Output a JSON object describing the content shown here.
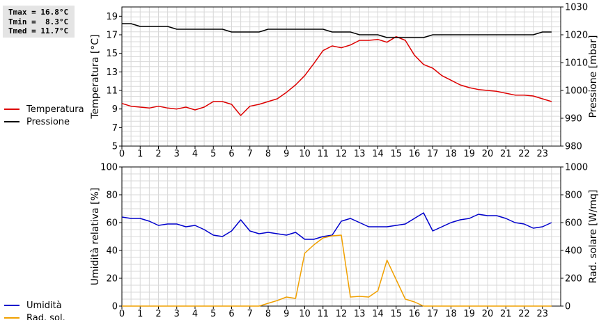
{
  "stats": {
    "tmax": "Tmax = 16.8°C",
    "tmin": "Tmin =  8.3°C",
    "tmed": "Tmed = 11.7°C"
  },
  "chart_data": [
    {
      "type": "line",
      "title": "",
      "xlabel": "",
      "ylabel": "Temperatura [°C]",
      "ylabel_right": "Pressione [mbar]",
      "xlim": [
        0,
        24
      ],
      "ylim": [
        5,
        20
      ],
      "ylim_right": [
        980,
        1030
      ],
      "xticks": [
        0,
        1,
        2,
        3,
        4,
        5,
        6,
        7,
        8,
        9,
        10,
        11,
        12,
        13,
        14,
        15,
        16,
        17,
        18,
        19,
        20,
        21,
        22,
        23
      ],
      "yticks": [
        5,
        7,
        9,
        11,
        13,
        15,
        17,
        19
      ],
      "yticks_right": [
        980,
        990,
        1000,
        1010,
        1020,
        1030
      ],
      "grid": true,
      "legend_position": "left",
      "series": [
        {
          "name": "Temperatura",
          "color": "#dd0000",
          "axis": "left",
          "x": [
            0,
            0.5,
            1,
            1.5,
            2,
            2.5,
            3,
            3.5,
            4,
            4.5,
            5,
            5.5,
            6,
            6.5,
            7,
            7.5,
            8,
            8.5,
            9,
            9.5,
            10,
            10.5,
            11,
            11.5,
            12,
            12.5,
            13,
            13.5,
            14,
            14.5,
            15,
            15.5,
            16,
            16.5,
            17,
            17.5,
            18,
            18.5,
            19,
            19.5,
            20,
            20.5,
            21,
            21.5,
            22,
            22.5,
            23,
            23.5
          ],
          "values": [
            9.6,
            9.3,
            9.2,
            9.1,
            9.3,
            9.1,
            9.0,
            9.2,
            8.9,
            9.2,
            9.8,
            9.8,
            9.5,
            8.3,
            9.3,
            9.5,
            9.8,
            10.1,
            10.8,
            11.6,
            12.6,
            13.9,
            15.3,
            15.8,
            15.6,
            15.9,
            16.4,
            16.4,
            16.5,
            16.2,
            16.8,
            16.4,
            14.8,
            13.8,
            13.4,
            12.6,
            12.1,
            11.6,
            11.3,
            11.1,
            11.0,
            10.9,
            10.7,
            10.5,
            10.5,
            10.4,
            10.1,
            9.8
          ]
        },
        {
          "name": "Pressione",
          "color": "#000000",
          "axis": "right",
          "x": [
            0,
            0.5,
            1,
            1.5,
            2,
            2.5,
            3,
            3.5,
            4,
            4.5,
            5,
            5.5,
            6,
            6.5,
            7,
            7.5,
            8,
            8.5,
            9,
            9.5,
            10,
            10.5,
            11,
            11.5,
            12,
            12.5,
            13,
            13.5,
            14,
            14.5,
            15,
            15.5,
            16,
            16.5,
            17,
            17.5,
            18,
            18.5,
            19,
            19.5,
            20,
            20.5,
            21,
            21.5,
            22,
            22.5,
            23,
            23.5
          ],
          "values": [
            1024,
            1024,
            1023,
            1023,
            1023,
            1023,
            1022,
            1022,
            1022,
            1022,
            1022,
            1022,
            1021,
            1021,
            1021,
            1021,
            1022,
            1022,
            1022,
            1022,
            1022,
            1022,
            1022,
            1021,
            1021,
            1021,
            1020,
            1020,
            1020,
            1019,
            1019,
            1019,
            1019,
            1019,
            1020,
            1020,
            1020,
            1020,
            1020,
            1020,
            1020,
            1020,
            1020,
            1020,
            1020,
            1020,
            1021,
            1021
          ]
        }
      ]
    },
    {
      "type": "line",
      "title": "",
      "xlabel": "",
      "ylabel": "Umidità relativa [%]",
      "ylabel_right": "Rad. solare [W/mq]",
      "xlim": [
        0,
        24
      ],
      "ylim": [
        0,
        100
      ],
      "ylim_right": [
        0,
        1000
      ],
      "xticks": [
        0,
        1,
        2,
        3,
        4,
        5,
        6,
        7,
        8,
        9,
        10,
        11,
        12,
        13,
        14,
        15,
        16,
        17,
        18,
        19,
        20,
        21,
        22,
        23
      ],
      "yticks": [
        0,
        20,
        40,
        60,
        80,
        100
      ],
      "yticks_right": [
        0,
        200,
        400,
        600,
        800,
        1000
      ],
      "grid": true,
      "legend_position": "left",
      "series": [
        {
          "name": "Umidità",
          "color": "#0000cc",
          "axis": "left",
          "x": [
            0,
            0.5,
            1,
            1.5,
            2,
            2.5,
            3,
            3.5,
            4,
            4.5,
            5,
            5.5,
            6,
            6.5,
            7,
            7.5,
            8,
            8.5,
            9,
            9.5,
            10,
            10.5,
            11,
            11.5,
            12,
            12.5,
            13,
            13.5,
            14,
            14.5,
            15,
            15.5,
            16,
            16.5,
            17,
            17.5,
            18,
            18.5,
            19,
            19.5,
            20,
            20.5,
            21,
            21.5,
            22,
            22.5,
            23,
            23.5
          ],
          "values": [
            64,
            63,
            63,
            61,
            58,
            59,
            59,
            57,
            58,
            55,
            51,
            50,
            54,
            62,
            54,
            52,
            53,
            52,
            51,
            53,
            48,
            48,
            50,
            51,
            61,
            63,
            60,
            57,
            57,
            57,
            58,
            59,
            63,
            67,
            54,
            57,
            60,
            62,
            63,
            66,
            65,
            65,
            63,
            60,
            59,
            56,
            57,
            60
          ]
        },
        {
          "name": "Rad. sol.",
          "color": "#f0a000",
          "axis": "right",
          "x": [
            0,
            0.5,
            1,
            1.5,
            2,
            2.5,
            3,
            3.5,
            4,
            4.5,
            5,
            5.5,
            6,
            6.5,
            7,
            7.5,
            8,
            8.5,
            9,
            9.5,
            10,
            10.5,
            11,
            11.5,
            12,
            12.5,
            13,
            13.5,
            14,
            14.5,
            15,
            15.5,
            16,
            16.5,
            17,
            17.5,
            18,
            18.5,
            19,
            19.5,
            20,
            20.5,
            21,
            21.5,
            22,
            22.5,
            23,
            23.5
          ],
          "values": [
            0,
            0,
            0,
            0,
            0,
            0,
            0,
            0,
            0,
            0,
            0,
            0,
            0,
            0,
            0,
            0,
            20,
            40,
            65,
            55,
            380,
            440,
            490,
            505,
            510,
            65,
            70,
            65,
            110,
            330,
            190,
            50,
            30,
            0,
            0,
            0,
            0,
            0,
            0,
            0,
            0,
            0,
            0,
            0,
            0,
            0,
            0,
            0
          ]
        }
      ]
    }
  ]
}
